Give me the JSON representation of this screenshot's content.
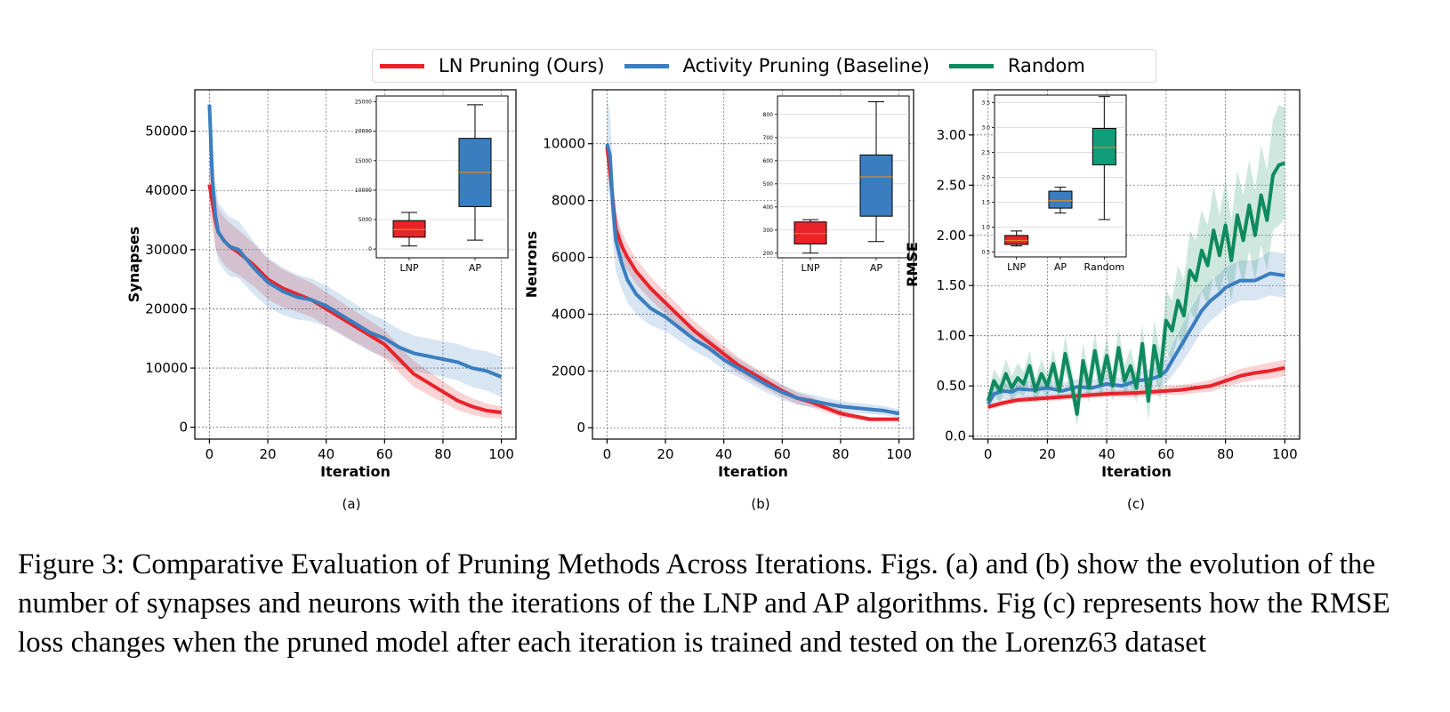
{
  "legend": {
    "items": [
      {
        "label": "LN Pruning (Ours)",
        "color": "#e8232a"
      },
      {
        "label": "Activity Pruning (Baseline)",
        "color": "#3a7ebf"
      },
      {
        "label": "Random",
        "color": "#0f8a5f"
      }
    ]
  },
  "caption": "Figure 3: Comparative Evaluation of Pruning Methods Across Iterations. Figs. (a) and (b) show the evolution of the number of synapses and neurons with the iterations of the LNP and AP algorithms. Fig (c) represents how the RMSE loss changes when the pruned model after each iteration is trained and tested on the Lorenz63 dataset",
  "chart_data": [
    {
      "type": "line",
      "panel": "(a)",
      "xlabel": "Iteration",
      "ylabel": "Synapses",
      "xlim": [
        -5,
        105
      ],
      "ylim": [
        -2000,
        57000
      ],
      "xticks": [
        0,
        20,
        40,
        60,
        80,
        100
      ],
      "yticks": [
        0,
        10000,
        20000,
        30000,
        40000,
        50000
      ],
      "ytick_labels": [
        "0",
        "10000",
        "20000",
        "30000",
        "40000",
        "50000"
      ],
      "series": [
        {
          "name": "LN Pruning (Ours)",
          "color": "#e8232a",
          "x": [
            0,
            1,
            2,
            3,
            5,
            7,
            10,
            15,
            20,
            25,
            30,
            35,
            40,
            45,
            50,
            55,
            60,
            65,
            70,
            75,
            80,
            85,
            90,
            95,
            100
          ],
          "y": [
            41000,
            38000,
            35000,
            33000,
            31500,
            30500,
            29500,
            27500,
            25000,
            23500,
            22500,
            21500,
            20000,
            18500,
            17000,
            15500,
            14000,
            11500,
            9000,
            7500,
            6000,
            4500,
            3500,
            2800,
            2500
          ],
          "band": [
            4500,
            4500,
            4500,
            4000,
            4000,
            4000,
            3800,
            3600,
            3400,
            3200,
            3000,
            2900,
            2800,
            2700,
            2600,
            2500,
            2400,
            2300,
            2200,
            2000,
            1800,
            1600,
            1400,
            1200,
            1000
          ]
        },
        {
          "name": "Activity Pruning (Baseline)",
          "color": "#3a7ebf",
          "x": [
            0,
            1,
            2,
            3,
            5,
            7,
            10,
            15,
            20,
            25,
            30,
            35,
            40,
            45,
            50,
            55,
            60,
            65,
            70,
            75,
            80,
            85,
            90,
            95,
            100
          ],
          "y": [
            54500,
            42000,
            36000,
            33000,
            31500,
            30500,
            30000,
            27000,
            24500,
            23000,
            22000,
            21500,
            20500,
            19000,
            17500,
            16000,
            15000,
            13500,
            12500,
            12000,
            11500,
            11000,
            10000,
            9500,
            8500
          ],
          "band": [
            1000,
            5500,
            5500,
            5000,
            5000,
            5000,
            4800,
            4500,
            4200,
            4000,
            3800,
            3600,
            3500,
            3400,
            3300,
            3200,
            3100,
            3000,
            3000,
            3000,
            3000,
            3100,
            3200,
            3300,
            3400
          ]
        }
      ],
      "inset": {
        "type": "box",
        "ylim": [
          -1500,
          26000
        ],
        "yticks": [
          0,
          5000,
          10000,
          15000,
          20000,
          25000
        ],
        "ytick_labels": [
          "0",
          "5000",
          "10000",
          "15000",
          "20000",
          "25000"
        ],
        "boxes": [
          {
            "label": "LNP",
            "color": "#e8232a",
            "min": 500,
            "q1": 2000,
            "median": 3300,
            "q3": 4800,
            "max": 6200
          },
          {
            "label": "AP",
            "color": "#3a7ebf",
            "min": 1500,
            "q1": 7200,
            "median": 13000,
            "q3": 18800,
            "max": 24500
          }
        ]
      }
    },
    {
      "type": "line",
      "panel": "(b)",
      "xlabel": "Iteration",
      "ylabel": "Neurons",
      "xlim": [
        -5,
        105
      ],
      "ylim": [
        -400,
        11900
      ],
      "xticks": [
        0,
        20,
        40,
        60,
        80,
        100
      ],
      "yticks": [
        0,
        2000,
        4000,
        6000,
        8000,
        10000
      ],
      "ytick_labels": [
        "0",
        "2000",
        "4000",
        "6000",
        "8000",
        "10000"
      ],
      "series": [
        {
          "name": "LN Pruning (Ours)",
          "color": "#e8232a",
          "x": [
            0,
            1,
            2,
            3,
            5,
            7,
            10,
            15,
            20,
            25,
            30,
            35,
            40,
            45,
            50,
            55,
            60,
            65,
            70,
            75,
            80,
            85,
            90,
            95,
            100
          ],
          "y": [
            9900,
            9000,
            8000,
            7000,
            6400,
            6000,
            5500,
            4900,
            4400,
            3900,
            3400,
            3000,
            2600,
            2200,
            1900,
            1600,
            1300,
            1050,
            900,
            700,
            500,
            400,
            300,
            300,
            300
          ],
          "band": [
            400,
            500,
            500,
            500,
            500,
            450,
            450,
            400,
            380,
            360,
            340,
            320,
            300,
            280,
            260,
            240,
            220,
            200,
            180,
            150,
            120,
            100,
            80,
            60,
            50
          ]
        },
        {
          "name": "Activity Pruning (Baseline)",
          "color": "#3a7ebf",
          "x": [
            0,
            1,
            2,
            3,
            5,
            7,
            10,
            15,
            20,
            25,
            30,
            35,
            40,
            45,
            50,
            55,
            60,
            65,
            70,
            75,
            80,
            85,
            90,
            95,
            100
          ],
          "y": [
            10000,
            9600,
            7800,
            6600,
            5800,
            5200,
            4700,
            4200,
            3900,
            3500,
            3100,
            2800,
            2400,
            2100,
            1800,
            1500,
            1250,
            1050,
            950,
            850,
            750,
            700,
            650,
            600,
            500
          ],
          "band": [
            1600,
            1500,
            1300,
            1100,
            900,
            800,
            700,
            600,
            500,
            450,
            400,
            380,
            350,
            320,
            300,
            280,
            260,
            240,
            220,
            200,
            190,
            180,
            170,
            160,
            150
          ]
        }
      ],
      "inset": {
        "type": "box",
        "ylim": [
          180,
          880
        ],
        "yticks": [
          200,
          300,
          400,
          500,
          600,
          700,
          800
        ],
        "ytick_labels": [
          "200",
          "300",
          "400",
          "500",
          "600",
          "700",
          "800"
        ],
        "boxes": [
          {
            "label": "LNP",
            "color": "#e8232a",
            "min": 200,
            "q1": 240,
            "median": 285,
            "q3": 335,
            "max": 345
          },
          {
            "label": "AP",
            "color": "#3a7ebf",
            "min": 250,
            "q1": 360,
            "median": 530,
            "q3": 625,
            "max": 855
          }
        ]
      }
    },
    {
      "type": "line",
      "panel": "(c)",
      "xlabel": "Iteration",
      "ylabel": "RMSE",
      "xlim": [
        -5,
        105
      ],
      "ylim": [
        -0.03,
        3.45
      ],
      "xticks": [
        0,
        20,
        40,
        60,
        80,
        100
      ],
      "yticks": [
        0.0,
        0.5,
        1.0,
        1.5,
        2.0,
        2.5,
        3.0
      ],
      "ytick_labels": [
        "0.0",
        "0.50",
        "1.00",
        "1.50",
        "2.00",
        "2.50",
        "3.00"
      ],
      "series": [
        {
          "name": "LN Pruning (Ours)",
          "color": "#e8232a",
          "x": [
            0,
            5,
            10,
            20,
            30,
            40,
            50,
            60,
            65,
            70,
            75,
            80,
            85,
            90,
            95,
            100
          ],
          "y": [
            0.29,
            0.33,
            0.36,
            0.38,
            0.4,
            0.42,
            0.43,
            0.45,
            0.46,
            0.48,
            0.5,
            0.55,
            0.6,
            0.63,
            0.65,
            0.68
          ],
          "band": [
            0.03,
            0.03,
            0.03,
            0.03,
            0.03,
            0.03,
            0.04,
            0.04,
            0.05,
            0.05,
            0.06,
            0.06,
            0.07,
            0.07,
            0.08,
            0.08
          ]
        },
        {
          "name": "Activity Pruning (Baseline)",
          "color": "#3a7ebf",
          "x": [
            0,
            2,
            5,
            8,
            10,
            15,
            20,
            25,
            30,
            35,
            40,
            45,
            50,
            55,
            58,
            60,
            62,
            65,
            68,
            70,
            72,
            75,
            78,
            80,
            85,
            90,
            95,
            100
          ],
          "y": [
            0.32,
            0.42,
            0.45,
            0.44,
            0.47,
            0.46,
            0.48,
            0.45,
            0.49,
            0.48,
            0.52,
            0.5,
            0.55,
            0.57,
            0.6,
            0.65,
            0.75,
            0.9,
            1.05,
            1.15,
            1.25,
            1.35,
            1.42,
            1.48,
            1.55,
            1.55,
            1.62,
            1.6
          ],
          "band": [
            0.05,
            0.08,
            0.08,
            0.08,
            0.08,
            0.08,
            0.08,
            0.08,
            0.08,
            0.08,
            0.08,
            0.08,
            0.09,
            0.1,
            0.1,
            0.12,
            0.15,
            0.18,
            0.2,
            0.2,
            0.2,
            0.2,
            0.2,
            0.2,
            0.2,
            0.2,
            0.22,
            0.22
          ]
        },
        {
          "name": "Random",
          "color": "#0f8a5f",
          "x": [
            0,
            2,
            4,
            6,
            8,
            10,
            12,
            14,
            16,
            18,
            20,
            22,
            24,
            26,
            28,
            30,
            32,
            34,
            36,
            38,
            40,
            42,
            44,
            46,
            48,
            50,
            52,
            54,
            56,
            58,
            60,
            62,
            64,
            66,
            68,
            70,
            72,
            74,
            76,
            78,
            80,
            82,
            84,
            86,
            88,
            90,
            92,
            94,
            96,
            98,
            100
          ],
          "y": [
            0.35,
            0.55,
            0.45,
            0.62,
            0.48,
            0.58,
            0.52,
            0.7,
            0.45,
            0.62,
            0.5,
            0.72,
            0.45,
            0.82,
            0.55,
            0.22,
            0.75,
            0.48,
            0.85,
            0.52,
            0.8,
            0.5,
            0.88,
            0.55,
            0.7,
            0.48,
            0.92,
            0.35,
            0.9,
            0.6,
            1.15,
            1.05,
            1.35,
            1.2,
            1.65,
            1.55,
            1.85,
            1.7,
            2.05,
            1.8,
            2.1,
            1.75,
            2.2,
            1.95,
            2.3,
            2.0,
            2.4,
            2.15,
            2.6,
            2.7,
            2.72
          ],
          "band": [
            0.05,
            0.12,
            0.12,
            0.15,
            0.12,
            0.15,
            0.12,
            0.15,
            0.12,
            0.15,
            0.12,
            0.15,
            0.12,
            0.18,
            0.15,
            0.12,
            0.18,
            0.15,
            0.18,
            0.15,
            0.18,
            0.15,
            0.2,
            0.15,
            0.18,
            0.15,
            0.2,
            0.2,
            0.25,
            0.25,
            0.3,
            0.3,
            0.35,
            0.35,
            0.4,
            0.4,
            0.4,
            0.4,
            0.45,
            0.4,
            0.45,
            0.4,
            0.45,
            0.45,
            0.45,
            0.45,
            0.5,
            0.5,
            0.55,
            0.6,
            0.55
          ]
        }
      ],
      "inset": {
        "type": "box",
        "ylim": [
          0.4,
          3.65
        ],
        "yticks": [
          0.5,
          1.0,
          1.5,
          2.0,
          2.5,
          3.0,
          3.5
        ],
        "ytick_labels": [
          "0.5",
          "1.0",
          "1.5",
          "2.0",
          "2.5",
          "3.0",
          "3.5"
        ],
        "boxes": [
          {
            "label": "LNP",
            "color": "#e8232a",
            "min": 0.62,
            "q1": 0.65,
            "median": 0.73,
            "q3": 0.83,
            "max": 0.92
          },
          {
            "label": "AP",
            "color": "#3a7ebf",
            "min": 1.28,
            "q1": 1.38,
            "median": 1.53,
            "q3": 1.72,
            "max": 1.8
          },
          {
            "label": "Random",
            "color": "#0f9e78",
            "min": 1.15,
            "q1": 2.25,
            "median": 2.6,
            "q3": 2.98,
            "max": 3.62
          }
        ]
      }
    }
  ]
}
